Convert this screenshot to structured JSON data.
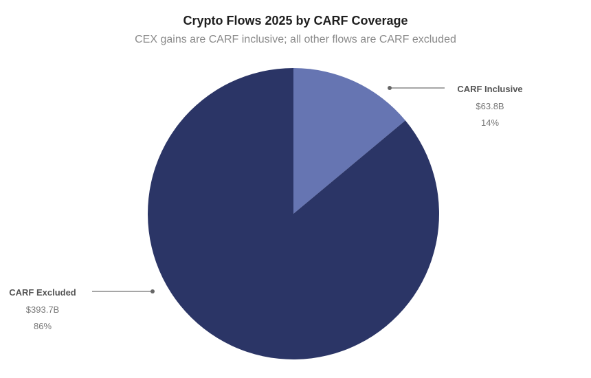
{
  "chart_data": {
    "type": "pie",
    "title": "Crypto Flows 2025 by CARF Coverage",
    "subtitle": "CEX gains are CARF inclusive; all other flows are CARF excluded",
    "slices": [
      {
        "label": "CARF Inclusive",
        "value": 63.8,
        "value_text": "$63.8B",
        "percent_text": "14%",
        "color": "#6675b2"
      },
      {
        "label": "CARF Excluded",
        "value": 393.7,
        "value_text": "$393.7B",
        "percent_text": "86%",
        "color": "#2b3566"
      }
    ]
  }
}
